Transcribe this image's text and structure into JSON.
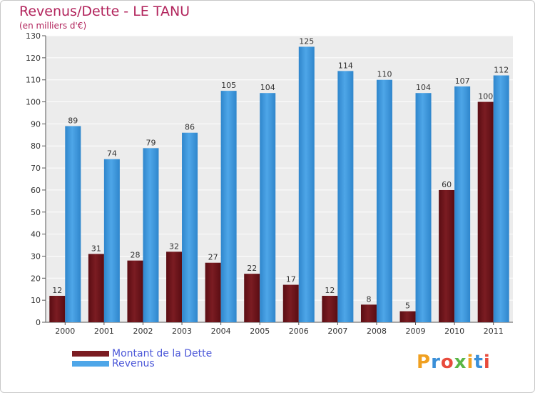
{
  "chart_data": {
    "type": "bar",
    "title": "Revenus/Dette - LE TANU",
    "subtitle": "(en milliers d'€)",
    "categories": [
      "2000",
      "2001",
      "2002",
      "2003",
      "2004",
      "2005",
      "2006",
      "2007",
      "2008",
      "2009",
      "2010",
      "2011"
    ],
    "series": [
      {
        "name": "Montant de la Dette",
        "color": "#7b1c22",
        "values": [
          12,
          31,
          28,
          32,
          27,
          22,
          17,
          12,
          8,
          5,
          60,
          100
        ]
      },
      {
        "name": "Revenus",
        "color": "#4ea6e8",
        "values": [
          89,
          74,
          79,
          86,
          105,
          104,
          125,
          114,
          110,
          104,
          107,
          112
        ]
      }
    ],
    "ylim": [
      0,
      130
    ],
    "yticks": [
      0,
      10,
      20,
      30,
      40,
      50,
      60,
      70,
      80,
      90,
      100,
      110,
      120,
      130
    ],
    "grid": true,
    "legend_position": "bottom-left"
  },
  "logo": {
    "letters": [
      "P",
      "r",
      "o",
      "x",
      "i",
      "t",
      "i"
    ],
    "colors": [
      "#f0a020",
      "#3a8fd8",
      "#e84b3c",
      "#5ab646",
      "#f0a020",
      "#3a8fd8",
      "#e84b3c"
    ]
  }
}
